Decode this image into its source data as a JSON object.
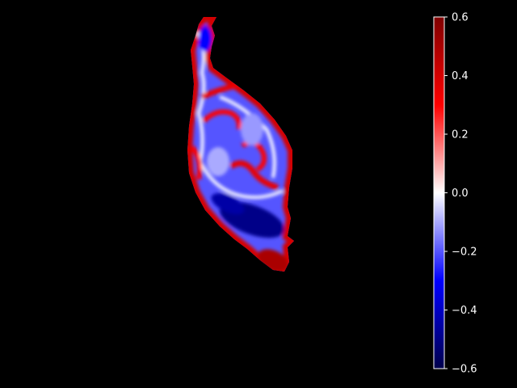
{
  "chart_data": {
    "type": "heatmap",
    "title": "",
    "xlabel": "",
    "ylabel": "",
    "grid": false,
    "background": "#000000",
    "colormap": "seismic",
    "colormap_stops": [
      "#00004c",
      "#0000ff",
      "#ffffff",
      "#ff0000",
      "#7f0000"
    ],
    "colorbar": {
      "vmin": -0.6,
      "vmax": 0.6,
      "ticks": [
        {
          "value": 0.6,
          "label": "0.6"
        },
        {
          "value": 0.4,
          "label": "0.4"
        },
        {
          "value": 0.2,
          "label": "0.2"
        },
        {
          "value": 0.0,
          "label": "0.0"
        },
        {
          "value": -0.2,
          "label": "−0.2"
        },
        {
          "value": -0.4,
          "label": "−0.4"
        },
        {
          "value": -0.6,
          "label": "−0.6"
        }
      ]
    },
    "map_regions": [
      {
        "region": "upper-stem",
        "typical_value": -0.3,
        "rim_value": 0.4
      },
      {
        "region": "central-body",
        "typical_value": -0.2,
        "rim_value": 0.4
      },
      {
        "region": "inner-red-ridges",
        "typical_value": 0.3
      },
      {
        "region": "lower-band",
        "typical_value": -0.5
      },
      {
        "region": "bottom-tip",
        "typical_value": 0.5
      }
    ]
  }
}
